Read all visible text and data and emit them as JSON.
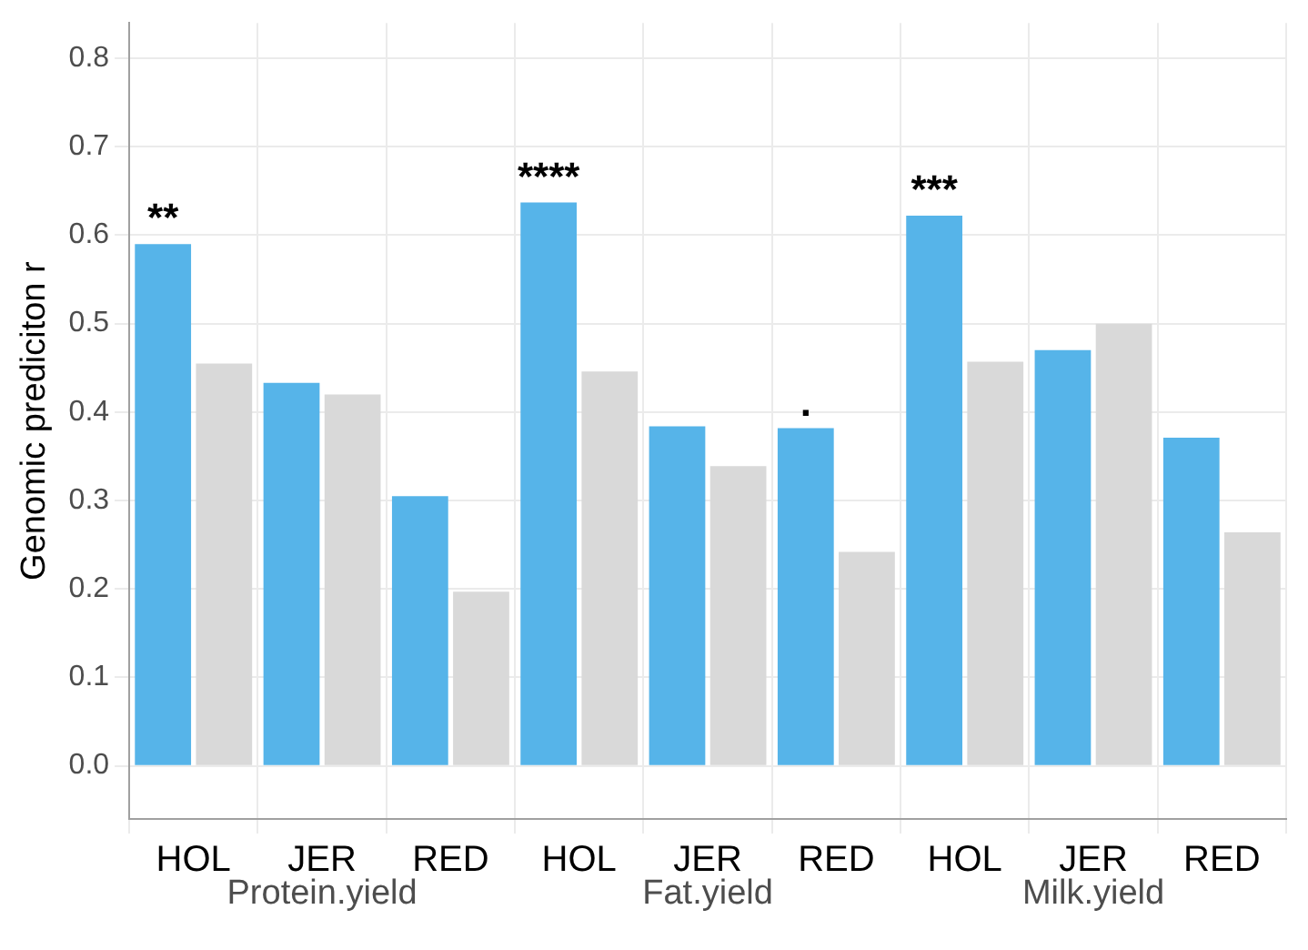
{
  "chart_data": {
    "type": "bar",
    "ylabel": "Genomic prediciton r",
    "categories": [
      "HOL",
      "JER",
      "RED",
      "HOL",
      "JER",
      "RED",
      "HOL",
      "JER",
      "RED"
    ],
    "series": [
      {
        "color": "#56b4e9",
        "values": [
          0.59,
          0.433,
          0.305,
          0.637,
          0.384,
          0.382,
          0.622,
          0.47,
          0.371
        ]
      },
      {
        "color": "#d9d9d9",
        "values": [
          0.455,
          0.42,
          0.197,
          0.446,
          0.339,
          0.242,
          0.457,
          0.5,
          0.264
        ]
      }
    ],
    "ylim": [
      -0.06,
      0.84
    ],
    "yticks": [
      {
        "value": 0,
        "label": "0.0"
      },
      {
        "value": 0.1,
        "label": "0.1"
      },
      {
        "value": 0.2,
        "label": "0.2"
      },
      {
        "value": 0.3,
        "label": "0.3"
      },
      {
        "value": 0.4,
        "label": "0.4"
      },
      {
        "value": 0.5,
        "label": "0.5"
      },
      {
        "value": 0.6,
        "label": "0.6"
      },
      {
        "value": 0.7,
        "label": "0.7"
      },
      {
        "value": 0.8,
        "label": "0.8"
      }
    ],
    "grid": true,
    "legend": false,
    "annotations": [
      "Protein.yield",
      "Fat.yield",
      "Milk.yield",
      "**",
      "****",
      ".",
      "***"
    ]
  }
}
